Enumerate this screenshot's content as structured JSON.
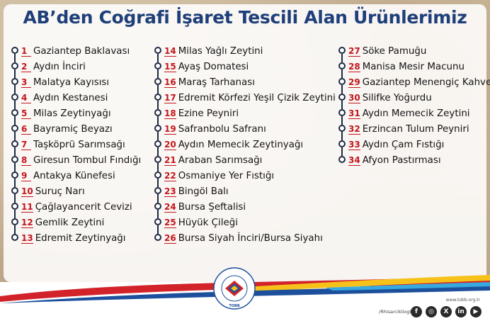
{
  "title": "AB’den Coğrafi İşaret Tescili Alan Ürünlerimiz",
  "columns": [
    [
      {
        "num": "1",
        "label": "Gaziantep Baklavası"
      },
      {
        "num": "2",
        "label": "Aydın İnciri"
      },
      {
        "num": "3",
        "label": "Malatya Kayısısı"
      },
      {
        "num": "4",
        "label": "Aydın Kestanesi"
      },
      {
        "num": "5",
        "label": "Milas Zeytinyağı"
      },
      {
        "num": "6",
        "label": "Bayramiç Beyazı"
      },
      {
        "num": "7",
        "label": "Taşköprü Sarımsağı"
      },
      {
        "num": "8",
        "label": "Giresun Tombul Fındığı"
      },
      {
        "num": "9",
        "label": "Antakya Künefesi"
      },
      {
        "num": "10",
        "label": "Suruç Narı"
      },
      {
        "num": "11",
        "label": "Çağlayancerit Cevizi"
      },
      {
        "num": "12",
        "label": "Gemlik Zeytini"
      },
      {
        "num": "13",
        "label": "Edremit Zeytinyağı"
      }
    ],
    [
      {
        "num": "14",
        "label": "Milas Yağlı Zeytini"
      },
      {
        "num": "15",
        "label": "Ayaş Domatesi"
      },
      {
        "num": "16",
        "label": "Maraş Tarhanası"
      },
      {
        "num": "17",
        "label": "Edremit Körfezi Yeşil Çizik Zeytini"
      },
      {
        "num": "18",
        "label": "Ezine Peyniri"
      },
      {
        "num": "19",
        "label": "Safranbolu Safranı"
      },
      {
        "num": "20",
        "label": "Aydın Memecik Zeytinyağı"
      },
      {
        "num": "21",
        "label": "Araban Sarımsağı"
      },
      {
        "num": "22",
        "label": "Osmaniye Yer Fıstığı"
      },
      {
        "num": "23",
        "label": "Bingöl Balı"
      },
      {
        "num": "24",
        "label": "Bursa Şeftalisi"
      },
      {
        "num": "25",
        "label": "Hüyük Çileği"
      },
      {
        "num": "26",
        "label": "Bursa Siyah İnciri/Bursa Siyahı"
      }
    ],
    [
      {
        "num": "27",
        "label": "Söke Pamuğu"
      },
      {
        "num": "28",
        "label": "Manisa Mesir Macunu"
      },
      {
        "num": "29",
        "label": "Gaziantep Menengiç Kahvesi"
      },
      {
        "num": "30",
        "label": "Silifke Yoğurdu"
      },
      {
        "num": "31",
        "label": "Aydın Memecik Zeytini"
      },
      {
        "num": "32",
        "label": "Erzincan Tulum Peyniri"
      },
      {
        "num": "33",
        "label": "Aydın Çam Fıstığı"
      },
      {
        "num": "34",
        "label": "Afyon Pastırması"
      }
    ]
  ],
  "footer": {
    "logo_text": "TÜRKİYE ODALAR VE BORSALAR BİRLİĞİ",
    "logo_abbr": "TOBB",
    "handle": "/Rhisarciklioglu",
    "website": "www.tobb.org.tr",
    "social_icons": [
      "facebook-icon",
      "instagram-icon",
      "x-icon",
      "linkedin-icon",
      "youtube-icon"
    ]
  },
  "colors": {
    "title": "#1f3f7a",
    "number": "#c4161c",
    "wave_red": "#d2232a",
    "wave_yellow": "#f6c21a",
    "wave_blue": "#1c4f9c",
    "wave_cyan": "#37a9df"
  }
}
